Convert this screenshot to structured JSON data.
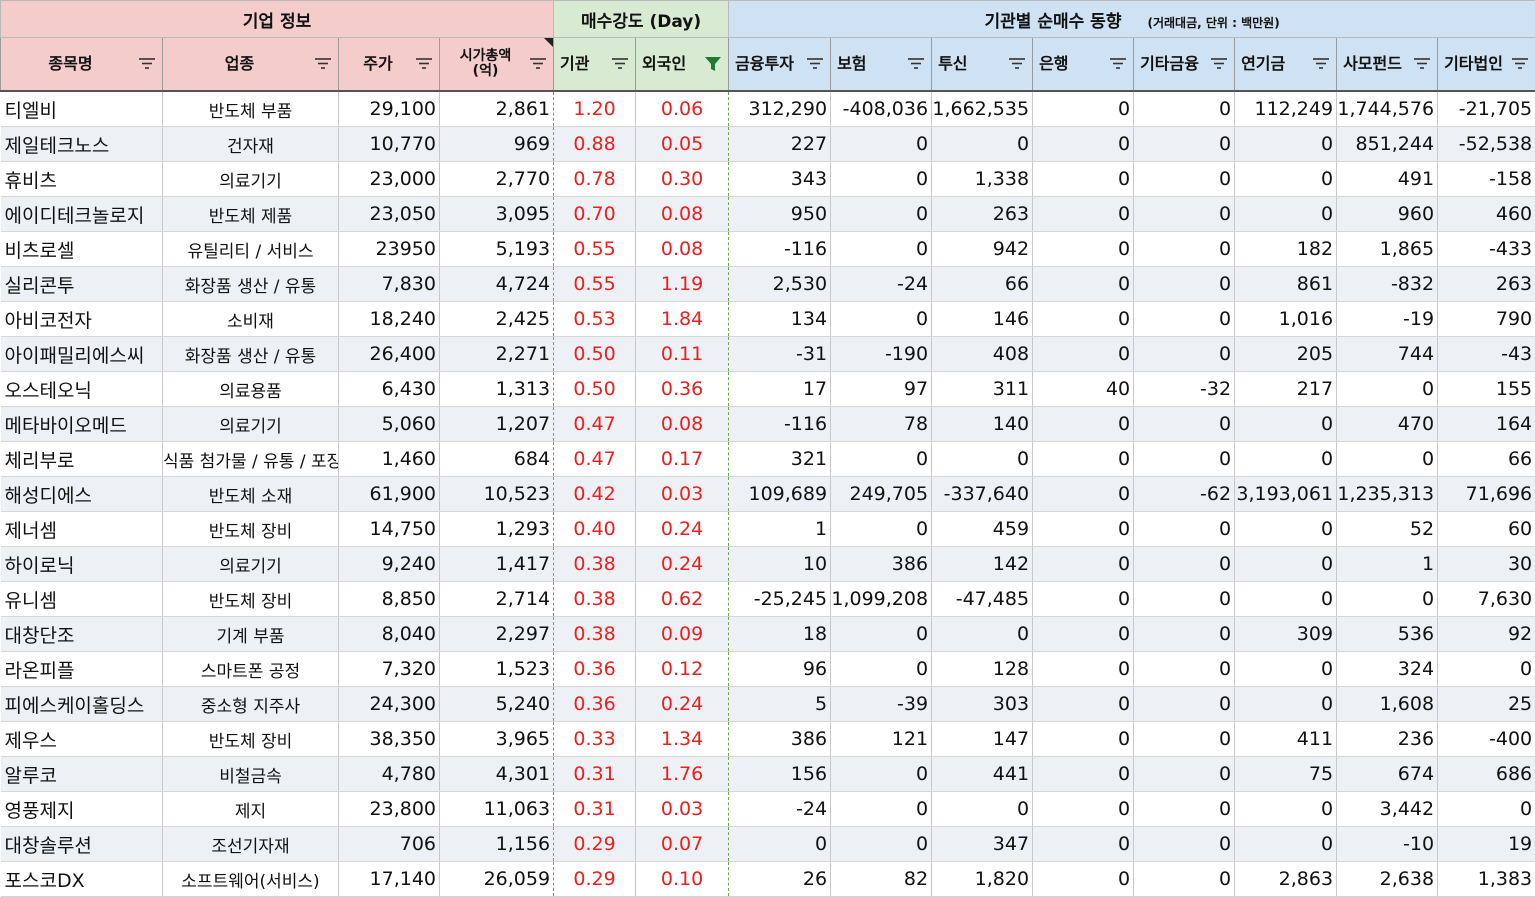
{
  "groups": {
    "info": "기업 정보",
    "strength": "매수강도 (Day)",
    "inst": "기관별 순매수 동향",
    "inst_unit": "(거래대금, 단위 : 백만원)"
  },
  "headers": [
    "종목명",
    "업종",
    "주가",
    "시가총액\n(억)",
    "기관",
    "외국인",
    "금융투자",
    "보험",
    "투신",
    "은행",
    "기타금융",
    "연기금",
    "사모펀드",
    "기타법인"
  ],
  "header_lines": {
    "cap1": "시가총액",
    "cap2": "(억)"
  },
  "icons": {
    "filter": "filter-dropdown-icon",
    "filter_active": "filter-active-icon"
  },
  "colors": {
    "info_header": "#f4cccc",
    "strength_header": "#d9ead3",
    "inst_header": "#cfe2f3",
    "strength_text": "#e8201f",
    "stripe": "#edf1f5"
  },
  "rows": [
    [
      "티엘비",
      "반도체 부품",
      "29,100",
      "2,861",
      "1.20",
      "0.06",
      "312,290",
      "-408,036",
      "1,662,535",
      "0",
      "0",
      "112,249",
      "1,744,576",
      "-21,705"
    ],
    [
      "제일테크노스",
      "건자재",
      "10,770",
      "969",
      "0.88",
      "0.05",
      "227",
      "0",
      "0",
      "0",
      "0",
      "0",
      "851,244",
      "-52,538"
    ],
    [
      "휴비츠",
      "의료기기",
      "23,000",
      "2,770",
      "0.78",
      "0.30",
      "343",
      "0",
      "1,338",
      "0",
      "0",
      "0",
      "491",
      "-158"
    ],
    [
      "에이디테크놀로지",
      "반도체 제품",
      "23,050",
      "3,095",
      "0.70",
      "0.08",
      "950",
      "0",
      "263",
      "0",
      "0",
      "0",
      "960",
      "460"
    ],
    [
      "비츠로셀",
      "유틸리티 / 서비스",
      "23950",
      "5,193",
      "0.55",
      "0.08",
      "-116",
      "0",
      "942",
      "0",
      "0",
      "182",
      "1,865",
      "-433"
    ],
    [
      "실리콘투",
      "화장품 생산 / 유통",
      "7,830",
      "4,724",
      "0.55",
      "1.19",
      "2,530",
      "-24",
      "66",
      "0",
      "0",
      "861",
      "-832",
      "263"
    ],
    [
      "아비코전자",
      "소비재",
      "18,240",
      "2,425",
      "0.53",
      "1.84",
      "134",
      "0",
      "146",
      "0",
      "0",
      "1,016",
      "-19",
      "790"
    ],
    [
      "아이패밀리에스씨",
      "화장품 생산 / 유통",
      "26,400",
      "2,271",
      "0.50",
      "0.11",
      "-31",
      "-190",
      "408",
      "0",
      "0",
      "205",
      "744",
      "-43"
    ],
    [
      "오스테오닉",
      "의료용품",
      "6,430",
      "1,313",
      "0.50",
      "0.36",
      "17",
      "97",
      "311",
      "40",
      "-32",
      "217",
      "0",
      "155"
    ],
    [
      "메타바이오메드",
      "의료기기",
      "5,060",
      "1,207",
      "0.47",
      "0.08",
      "-116",
      "78",
      "140",
      "0",
      "0",
      "0",
      "470",
      "164"
    ],
    [
      "체리부로",
      "식품 첨가물 / 유통 / 포장",
      "1,460",
      "684",
      "0.47",
      "0.17",
      "321",
      "0",
      "0",
      "0",
      "0",
      "0",
      "0",
      "66"
    ],
    [
      "해성디에스",
      "반도체 소재",
      "61,900",
      "10,523",
      "0.42",
      "0.03",
      "109,689",
      "249,705",
      "-337,640",
      "0",
      "-62",
      "3,193,061",
      "1,235,313",
      "71,696"
    ],
    [
      "제너셈",
      "반도체 장비",
      "14,750",
      "1,293",
      "0.40",
      "0.24",
      "1",
      "0",
      "459",
      "0",
      "0",
      "0",
      "52",
      "60"
    ],
    [
      "하이로닉",
      "의료기기",
      "9,240",
      "1,417",
      "0.38",
      "0.24",
      "10",
      "386",
      "142",
      "0",
      "0",
      "0",
      "1",
      "30"
    ],
    [
      "유니셈",
      "반도체 장비",
      "8,850",
      "2,714",
      "0.38",
      "0.62",
      "-25,245",
      "1,099,208",
      "-47,485",
      "0",
      "0",
      "0",
      "0",
      "7,630"
    ],
    [
      "대창단조",
      "기계 부품",
      "8,040",
      "2,297",
      "0.38",
      "0.09",
      "18",
      "0",
      "0",
      "0",
      "0",
      "309",
      "536",
      "92"
    ],
    [
      "라온피플",
      "스마트폰 공정",
      "7,320",
      "1,523",
      "0.36",
      "0.12",
      "96",
      "0",
      "128",
      "0",
      "0",
      "0",
      "324",
      "0"
    ],
    [
      "피에스케이홀딩스",
      "중소형 지주사",
      "24,300",
      "5,240",
      "0.36",
      "0.24",
      "5",
      "-39",
      "303",
      "0",
      "0",
      "0",
      "1,608",
      "25"
    ],
    [
      "제우스",
      "반도체 장비",
      "38,350",
      "3,965",
      "0.33",
      "1.34",
      "386",
      "121",
      "147",
      "0",
      "0",
      "411",
      "236",
      "-400"
    ],
    [
      "알루코",
      "비철금속",
      "4,780",
      "4,301",
      "0.31",
      "1.76",
      "156",
      "0",
      "441",
      "0",
      "0",
      "75",
      "674",
      "686"
    ],
    [
      "영풍제지",
      "제지",
      "23,800",
      "11,063",
      "0.31",
      "0.03",
      "-24",
      "0",
      "0",
      "0",
      "0",
      "0",
      "3,442",
      "0"
    ],
    [
      "대창솔루션",
      "조선기자재",
      "706",
      "1,156",
      "0.29",
      "0.07",
      "0",
      "0",
      "347",
      "0",
      "0",
      "0",
      "-10",
      "19"
    ],
    [
      "포스코DX",
      "소프트웨어(서비스)",
      "17,140",
      "26,059",
      "0.29",
      "0.10",
      "26",
      "82",
      "1,820",
      "0",
      "0",
      "2,863",
      "2,638",
      "1,383"
    ]
  ]
}
